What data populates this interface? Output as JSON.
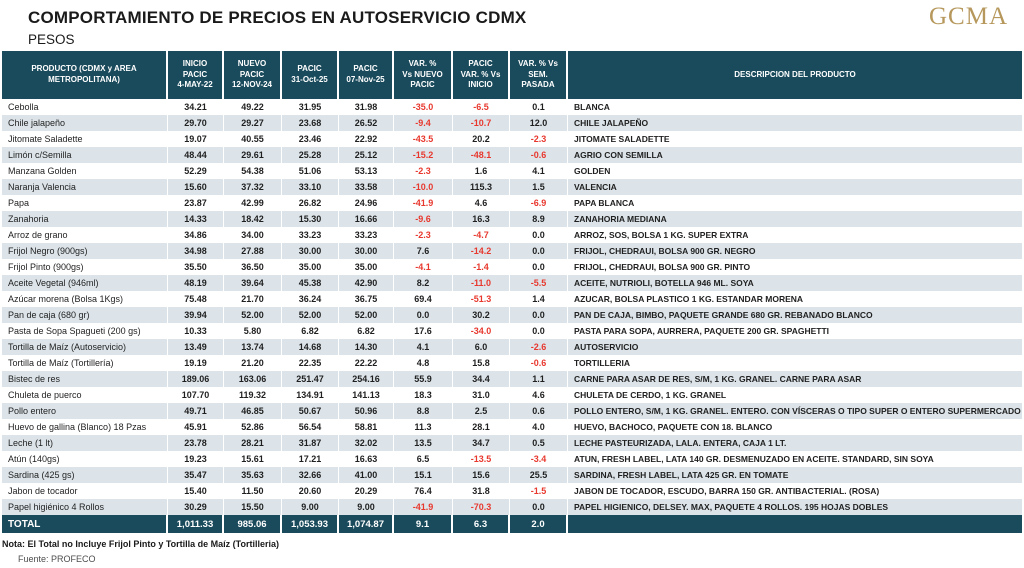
{
  "header": {
    "title": "COMPORTAMIENTO DE PRECIOS EN AUTOSERVICIO CDMX",
    "units": "PESOS",
    "logo": "GCMA"
  },
  "colors": {
    "header_bg": "#1A4B5C",
    "stripe": "#DCE4E9",
    "negative": "#E8382E",
    "logo_gold": "#B6985C"
  },
  "chart_data": {
    "type": "table",
    "title": "COMPORTAMIENTO DE PRECIOS EN AUTOSERVICIO CDMX",
    "units": "PESOS",
    "columns": [
      "PRODUCTO (CDMX y AREA\nMETROPOLITANA)",
      "INICIO\nPACIC\n4-MAY-22",
      "NUEVO\nPACIC\n12-NOV-24",
      "PACIC\n31-Oct-25",
      "PACIC\n07-Nov-25",
      "VAR. %\nVs  NUEVO\nPACIC",
      "PACIC\nVAR. % Vs\nINICIO",
      "VAR. % Vs\nSEM.\nPASADA",
      "DESCRIPCION DEL PRODUCTO"
    ],
    "rows": [
      {
        "product": "Cebolla",
        "values": [
          "34.21",
          "49.22",
          "31.95",
          "31.98",
          "-35.0",
          "-6.5",
          "0.1"
        ],
        "description": "BLANCA"
      },
      {
        "product": "Chile jalapeño",
        "values": [
          "29.70",
          "29.27",
          "23.68",
          "26.52",
          "-9.4",
          "-10.7",
          "12.0"
        ],
        "description": "CHILE JALAPEÑO"
      },
      {
        "product": "Jitomate Saladette",
        "values": [
          "19.07",
          "40.55",
          "23.46",
          "22.92",
          "-43.5",
          "20.2",
          "-2.3"
        ],
        "description": "JITOMATE SALADETTE"
      },
      {
        "product": "Limón c/Semilla",
        "values": [
          "48.44",
          "29.61",
          "25.28",
          "25.12",
          "-15.2",
          "-48.1",
          "-0.6"
        ],
        "description": "AGRIO CON SEMILLA"
      },
      {
        "product": "Manzana Golden",
        "values": [
          "52.29",
          "54.38",
          "51.06",
          "53.13",
          "-2.3",
          "1.6",
          "4.1"
        ],
        "description": "GOLDEN"
      },
      {
        "product": "Naranja Valencia",
        "values": [
          "15.60",
          "37.32",
          "33.10",
          "33.58",
          "-10.0",
          "115.3",
          "1.5"
        ],
        "description": "VALENCIA"
      },
      {
        "product": "Papa",
        "values": [
          "23.87",
          "42.99",
          "26.82",
          "24.96",
          "-41.9",
          "4.6",
          "-6.9"
        ],
        "description": "PAPA BLANCA"
      },
      {
        "product": "Zanahoria",
        "values": [
          "14.33",
          "18.42",
          "15.30",
          "16.66",
          "-9.6",
          "16.3",
          "8.9"
        ],
        "description": "ZANAHORIA MEDIANA"
      },
      {
        "product": "Arroz de grano",
        "values": [
          "34.86",
          "34.00",
          "33.23",
          "33.23",
          "-2.3",
          "-4.7",
          "0.0"
        ],
        "description": "ARROZ, SOS, BOLSA 1 KG. SUPER EXTRA"
      },
      {
        "product": "Frijol Negro (900gs)",
        "values": [
          "34.98",
          "27.88",
          "30.00",
          "30.00",
          "7.6",
          "-14.2",
          "0.0"
        ],
        "description": "FRIJOL, CHEDRAUI, BOLSA 900 GR. NEGRO"
      },
      {
        "product": "Frijol Pinto (900gs)",
        "values": [
          "35.50",
          "36.50",
          "35.00",
          "35.00",
          "-4.1",
          "-1.4",
          "0.0"
        ],
        "description": "FRIJOL, CHEDRAUI, BOLSA 900 GR. PINTO"
      },
      {
        "product": "Aceite Vegetal (946ml)",
        "values": [
          "48.19",
          "39.64",
          "45.38",
          "42.90",
          "8.2",
          "-11.0",
          "-5.5"
        ],
        "description": "ACEITE, NUTRIOLI, BOTELLA 946 ML. SOYA"
      },
      {
        "product": "Azúcar morena (Bolsa 1Kgs)",
        "values": [
          "75.48",
          "21.70",
          "36.24",
          "36.75",
          "69.4",
          "-51.3",
          "1.4"
        ],
        "description": "AZUCAR, BOLSA PLASTICO 1 KG. ESTANDAR MORENA"
      },
      {
        "product": "Pan de caja (680 gr)",
        "values": [
          "39.94",
          "52.00",
          "52.00",
          "52.00",
          "0.0",
          "30.2",
          "0.0"
        ],
        "description": "PAN DE CAJA, BIMBO, PAQUETE GRANDE 680 GR. REBANADO BLANCO"
      },
      {
        "product": "Pasta de Sopa Spagueti (200 gs)",
        "values": [
          "10.33",
          "5.80",
          "6.82",
          "6.82",
          "17.6",
          "-34.0",
          "0.0"
        ],
        "description": "PASTA PARA SOPA, AURRERA, PAQUETE 200 GR. SPAGHETTI"
      },
      {
        "product": "Tortilla de Maíz (Autoservicio)",
        "values": [
          "13.49",
          "13.74",
          "14.68",
          "14.30",
          "4.1",
          "6.0",
          "-2.6"
        ],
        "description": "AUTOSERVICIO"
      },
      {
        "product": "Tortilla de Maíz (Tortillería)",
        "values": [
          "19.19",
          "21.20",
          "22.35",
          "22.22",
          "4.8",
          "15.8",
          "-0.6"
        ],
        "description": "TORTILLERIA"
      },
      {
        "product": "Bistec de res",
        "values": [
          "189.06",
          "163.06",
          "251.47",
          "254.16",
          "55.9",
          "34.4",
          "1.1"
        ],
        "description": "CARNE PARA ASAR DE RES, S/M, 1 KG. GRANEL. CARNE PARA ASAR"
      },
      {
        "product": "Chuleta de puerco",
        "values": [
          "107.70",
          "119.32",
          "134.91",
          "141.13",
          "18.3",
          "31.0",
          "4.6"
        ],
        "description": "CHULETA DE CERDO, 1 KG. GRANEL"
      },
      {
        "product": "Pollo entero",
        "values": [
          "49.71",
          "46.85",
          "50.67",
          "50.96",
          "8.8",
          "2.5",
          "0.6"
        ],
        "description": "POLLO ENTERO, S/M, 1 KG. GRANEL. ENTERO. CON VÍSCERAS O TIPO SUPER O ENTERO SUPERMERCADO"
      },
      {
        "product": "Huevo de gallina (Blanco) 18 Pzas",
        "values": [
          "45.91",
          "52.86",
          "56.54",
          "58.81",
          "11.3",
          "28.1",
          "4.0"
        ],
        "description": "HUEVO, BACHOCO, PAQUETE CON 18. BLANCO"
      },
      {
        "product": "Leche (1 lt)",
        "values": [
          "23.78",
          "28.21",
          "31.87",
          "32.02",
          "13.5",
          "34.7",
          "0.5"
        ],
        "description": "LECHE PASTEURIZADA, LALA. ENTERA, CAJA 1 LT."
      },
      {
        "product": "Atún (140gs)",
        "values": [
          "19.23",
          "15.61",
          "17.21",
          "16.63",
          "6.5",
          "-13.5",
          "-3.4"
        ],
        "description": "ATUN, FRESH LABEL, LATA 140 GR. DESMENUZADO EN ACEITE. STANDARD, SIN SOYA"
      },
      {
        "product": "Sardina (425 gs)",
        "values": [
          "35.47",
          "35.63",
          "32.66",
          "41.00",
          "15.1",
          "15.6",
          "25.5"
        ],
        "description": "SARDINA, FRESH LABEL, LATA 425 GR. EN TOMATE"
      },
      {
        "product": "Jabon de tocador",
        "values": [
          "15.40",
          "11.50",
          "20.60",
          "20.29",
          "76.4",
          "31.8",
          "-1.5"
        ],
        "description": "JABON DE TOCADOR, ESCUDO, BARRA 150 GR. ANTIBACTERIAL. (ROSA)"
      },
      {
        "product": "Papel higiénico 4 Rollos",
        "values": [
          "30.29",
          "15.50",
          "9.00",
          "9.00",
          "-41.9",
          "-70.3",
          "0.0"
        ],
        "description": "PAPEL HIGIENICO, DELSEY. MAX, PAQUETE 4 ROLLOS. 195 HOJAS DOBLES"
      }
    ],
    "total": {
      "label": "TOTAL",
      "values": [
        "1,011.33",
        "985.06",
        "1,053.93",
        "1,074.87",
        "9.1",
        "6.3",
        "2.0"
      ]
    }
  },
  "footer": {
    "note": "Nota: El Total no Incluye Frijol Pinto y Tortilla de Maíz (Tortilleria)",
    "source": "Fuente: PROFECO"
  }
}
